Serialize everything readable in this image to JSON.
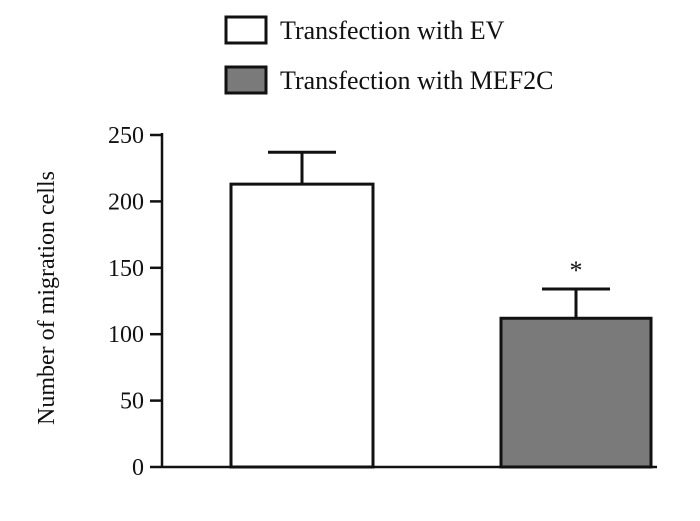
{
  "chart_data": {
    "type": "bar",
    "categories": [
      "Transfection with EV",
      "Transfection with MEF2C"
    ],
    "values": [
      213,
      112
    ],
    "error_upper": [
      237,
      134
    ],
    "colors": [
      "#ffffff",
      "#7a7a7a"
    ],
    "legend": {
      "position": "top",
      "entries": [
        "Transfection with EV",
        "Transfection with MEF2C"
      ]
    },
    "annotations": [
      {
        "category": "Transfection with MEF2C",
        "text": "*"
      }
    ],
    "xlabel": "",
    "ylabel": "Number of migration cells",
    "ylim": [
      0,
      250
    ],
    "yticks": [
      "0",
      "50",
      "100",
      "150",
      "200",
      "250"
    ],
    "grid": false
  }
}
